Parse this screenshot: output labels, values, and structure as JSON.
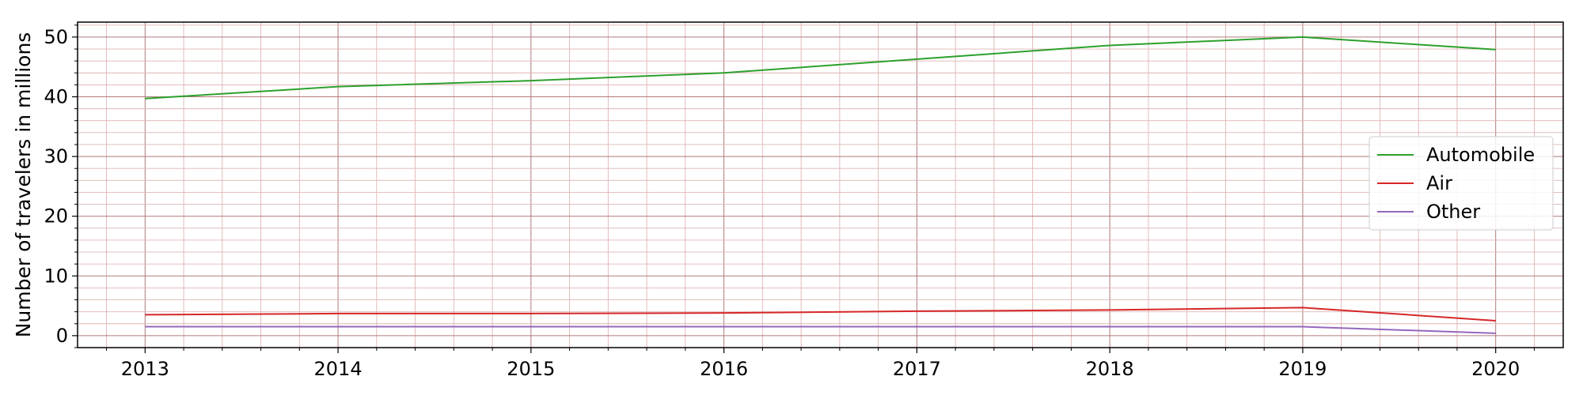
{
  "chart_data": {
    "type": "line",
    "title": "",
    "xlabel": "",
    "ylabel": "Number of travelers in millions",
    "x": [
      "2013",
      "2014",
      "2015",
      "2016",
      "2017",
      "2018",
      "2019",
      "2020"
    ],
    "xlim": [
      2012.65,
      2020.35
    ],
    "ylim": [
      -2,
      52.5
    ],
    "yticks": [
      0,
      10,
      20,
      30,
      40,
      50
    ],
    "grid": true,
    "minor_grid": true,
    "legend_position": "center-right",
    "series": [
      {
        "name": "Automobile",
        "color": "#2ca02c",
        "values": [
          39.7,
          41.7,
          42.7,
          44.0,
          46.3,
          48.6,
          50.0,
          47.9
        ]
      },
      {
        "name": "Air",
        "color": "#d62728",
        "values": [
          3.5,
          3.7,
          3.7,
          3.8,
          4.1,
          4.3,
          4.7,
          2.5
        ]
      },
      {
        "name": "Other",
        "color": "#9467bd",
        "values": [
          1.5,
          1.5,
          1.5,
          1.5,
          1.5,
          1.5,
          1.5,
          0.4
        ]
      }
    ]
  }
}
